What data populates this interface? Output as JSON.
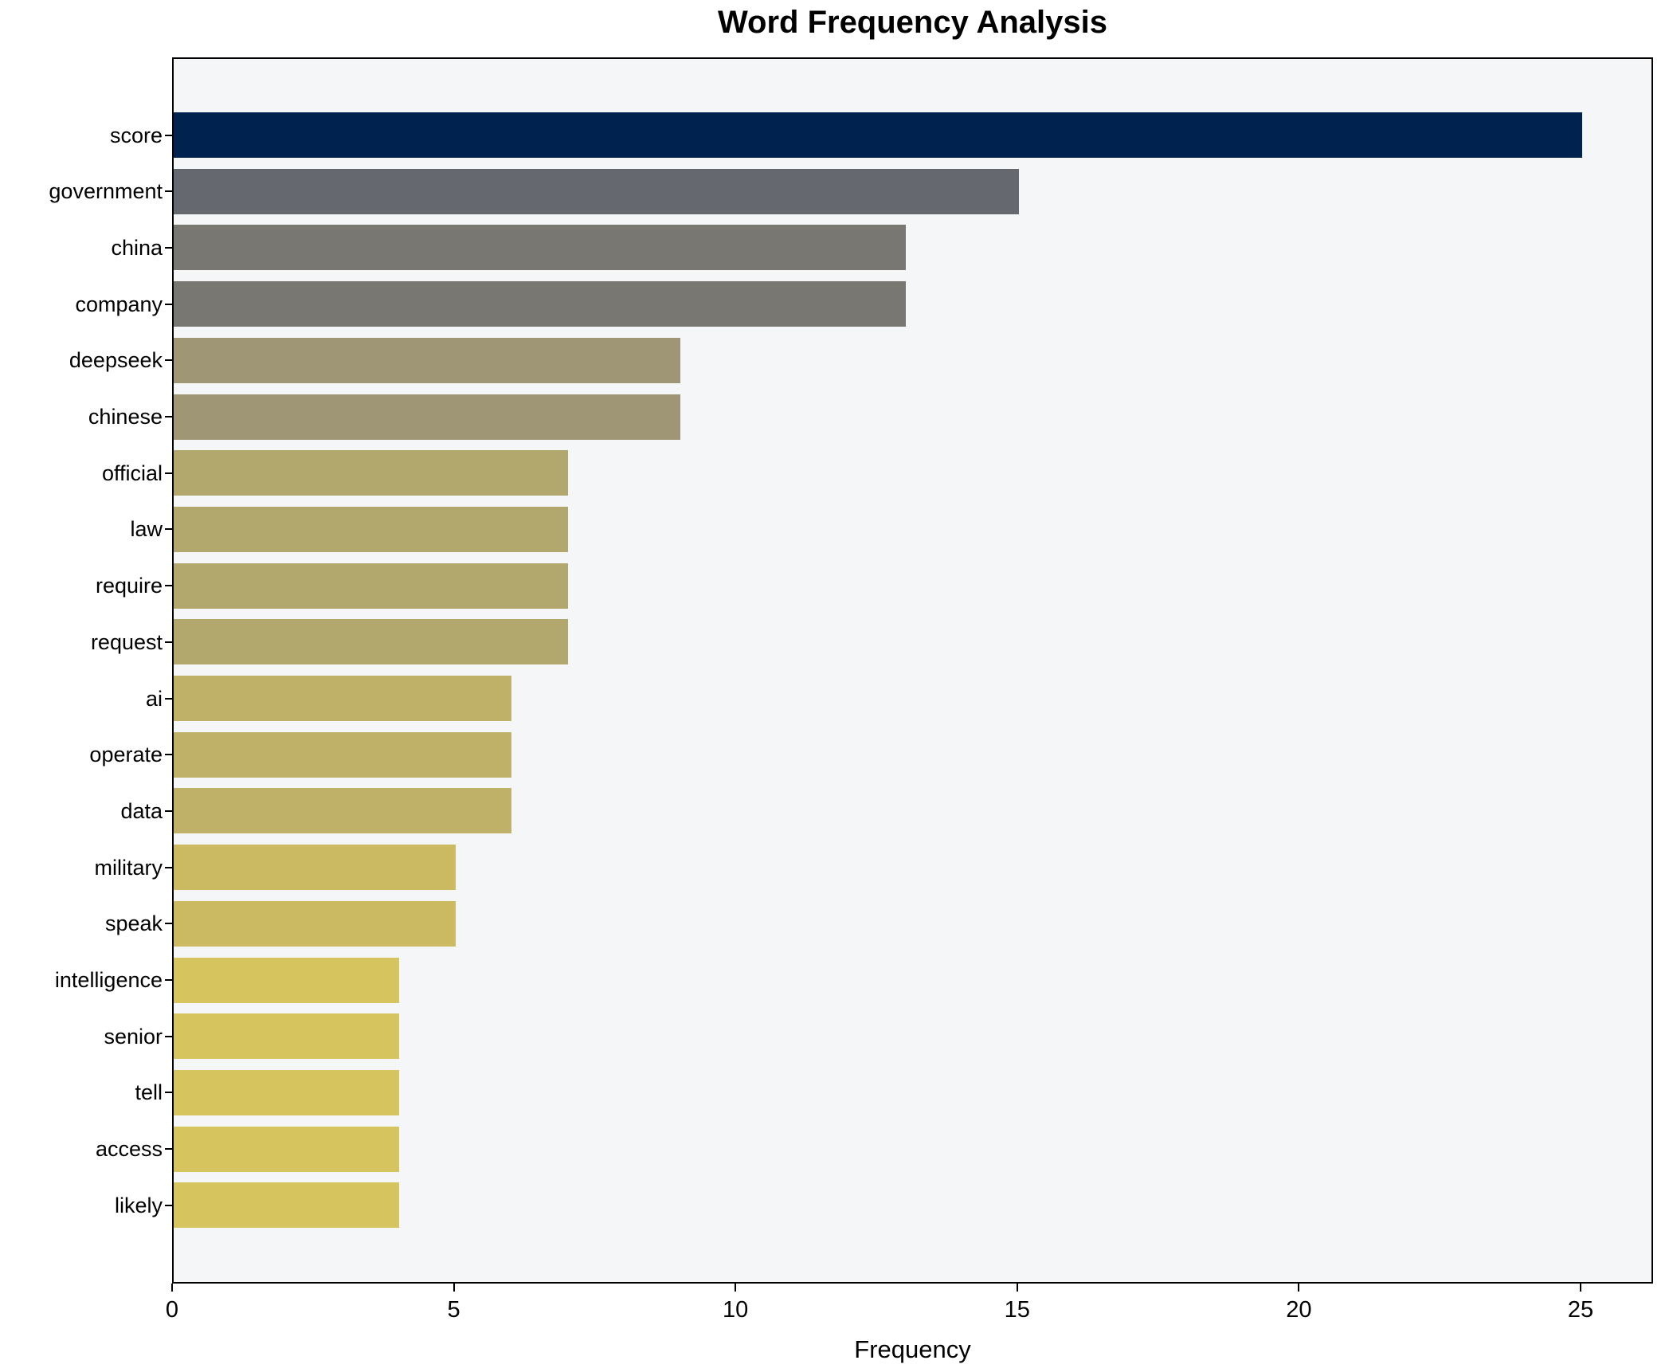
{
  "title": "Word Frequency Analysis",
  "chart_data": {
    "type": "bar",
    "orientation": "horizontal",
    "title": "Word Frequency Analysis",
    "xlabel": "Frequency",
    "ylabel": "",
    "categories": [
      "score",
      "government",
      "china",
      "company",
      "deepseek",
      "chinese",
      "official",
      "law",
      "require",
      "request",
      "ai",
      "operate",
      "data",
      "military",
      "speak",
      "intelligence",
      "senior",
      "tell",
      "access",
      "likely"
    ],
    "values": [
      25,
      15,
      13,
      13,
      9,
      9,
      7,
      7,
      7,
      7,
      6,
      6,
      6,
      5,
      5,
      4,
      4,
      4,
      4,
      4
    ],
    "bar_colors": [
      "#00224e",
      "#65696f",
      "#787771",
      "#787771",
      "#9e9674",
      "#9e9674",
      "#b2a76c",
      "#b2a76c",
      "#b2a76c",
      "#b2a76c",
      "#c0b169",
      "#c0b169",
      "#c0b169",
      "#ccba62",
      "#ccba62",
      "#d6c45f",
      "#d6c45f",
      "#d6c45f",
      "#d6c45f",
      "#d6c45f"
    ],
    "x_ticks": [
      0,
      5,
      10,
      15,
      20,
      25
    ],
    "xlim": [
      0,
      26.3
    ],
    "grid": false,
    "legend": "none",
    "plot_background": "#f5f6f7",
    "figure_background": "#ffffff"
  },
  "layout_note_colors": {
    "spine": "#000000",
    "text": "#000000"
  }
}
